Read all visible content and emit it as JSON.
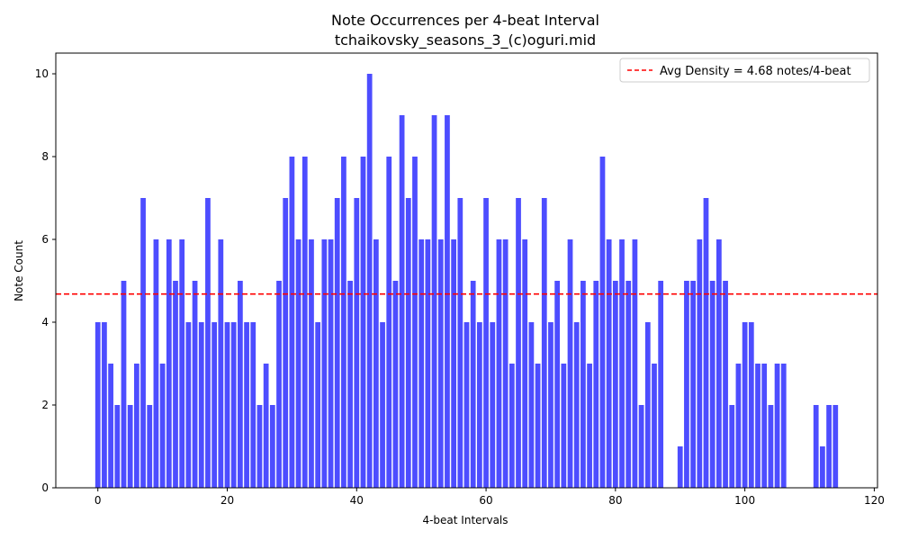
{
  "chart_data": {
    "type": "bar",
    "title": "Note Occurrences per 4-beat Interval",
    "subtitle": "tchaikovsky_seasons_3_(c)oguri.mid",
    "xlabel": "4-beat Intervals",
    "ylabel": "Note Count",
    "xlim": [
      -6.5,
      120.5
    ],
    "ylim": [
      0,
      10.5
    ],
    "xticks": [
      0,
      20,
      40,
      60,
      80,
      100,
      120
    ],
    "yticks": [
      0,
      2,
      4,
      6,
      8,
      10
    ],
    "bar_color": "#4d4dff",
    "x": [
      0,
      1,
      2,
      3,
      4,
      5,
      6,
      7,
      8,
      9,
      10,
      11,
      12,
      13,
      14,
      15,
      16,
      17,
      18,
      19,
      20,
      21,
      22,
      23,
      24,
      25,
      26,
      27,
      28,
      29,
      30,
      31,
      32,
      33,
      34,
      35,
      36,
      37,
      38,
      39,
      40,
      41,
      42,
      43,
      44,
      45,
      46,
      47,
      48,
      49,
      50,
      51,
      52,
      53,
      54,
      55,
      56,
      57,
      58,
      59,
      60,
      61,
      62,
      63,
      64,
      65,
      66,
      67,
      68,
      69,
      70,
      71,
      72,
      73,
      74,
      75,
      76,
      77,
      78,
      79,
      80,
      81,
      82,
      83,
      84,
      85,
      86,
      87,
      88,
      89,
      90,
      91,
      92,
      93,
      94,
      95,
      96,
      97,
      98,
      99,
      100,
      101,
      102,
      103,
      104,
      105,
      106,
      107,
      108,
      109,
      110,
      111,
      112,
      113,
      114
    ],
    "values": [
      4,
      4,
      3,
      2,
      5,
      2,
      3,
      7,
      2,
      6,
      3,
      6,
      5,
      6,
      4,
      5,
      4,
      7,
      4,
      6,
      4,
      4,
      5,
      4,
      4,
      2,
      3,
      2,
      5,
      7,
      8,
      6,
      8,
      6,
      4,
      6,
      6,
      7,
      8,
      5,
      7,
      8,
      10,
      6,
      4,
      8,
      5,
      9,
      7,
      8,
      6,
      6,
      9,
      6,
      9,
      6,
      7,
      4,
      5,
      4,
      7,
      4,
      6,
      6,
      3,
      7,
      6,
      4,
      3,
      7,
      4,
      5,
      3,
      6,
      4,
      5,
      3,
      5,
      8,
      6,
      5,
      6,
      5,
      6,
      2,
      4,
      3,
      5,
      0,
      0,
      1,
      5,
      5,
      6,
      7,
      5,
      6,
      5,
      2,
      3,
      4,
      4,
      3,
      3,
      2,
      3,
      3,
      0,
      0,
      0,
      0,
      2,
      1,
      2,
      2
    ],
    "avg_line": {
      "value": 4.68,
      "label": "Avg Density = 4.68 notes/4-beat",
      "color": "#ff0000",
      "style": "dashed"
    },
    "legend_placement": "top-right",
    "grid": false
  }
}
